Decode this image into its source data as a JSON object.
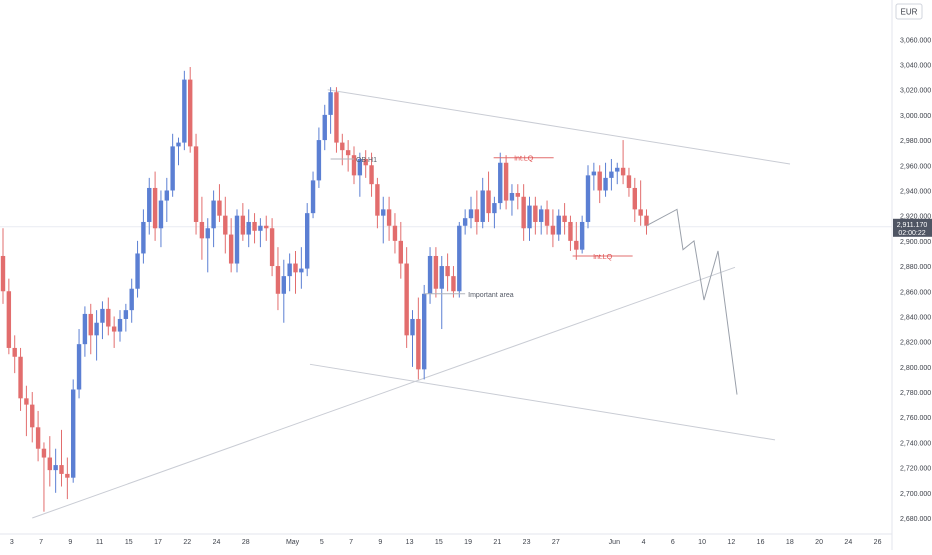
{
  "chart_data": {
    "type": "candlestick",
    "currency": "EUR",
    "y_ticks": [
      2680,
      2700,
      2720,
      2740,
      2760,
      2780,
      2800,
      2820,
      2840,
      2860,
      2880,
      2900,
      2920,
      2940,
      2960,
      2980,
      3000,
      3020,
      3040,
      3060
    ],
    "y_tick_labels": [
      "2,680.000",
      "2,700.000",
      "2,720.000",
      "2,740.000",
      "2,760.000",
      "2,780.000",
      "2,800.000",
      "2,820.000",
      "2,840.000",
      "2,860.000",
      "2,880.000",
      "2,900.000",
      "2,920.000",
      "2,940.000",
      "2,960.000",
      "2,980.000",
      "3,000.000",
      "3,020.000",
      "3,040.000",
      "3,060.000"
    ],
    "x_labels": [
      {
        "label": "3",
        "bar": 1.5
      },
      {
        "label": "7",
        "bar": 6.5
      },
      {
        "label": "9",
        "bar": 11.5
      },
      {
        "label": "11",
        "bar": 16.5
      },
      {
        "label": "15",
        "bar": 21.5
      },
      {
        "label": "17",
        "bar": 26.5
      },
      {
        "label": "22",
        "bar": 31.5
      },
      {
        "label": "24",
        "bar": 36.5
      },
      {
        "label": "28",
        "bar": 41.5
      },
      {
        "label": "May",
        "bar": 49.5
      },
      {
        "label": "5",
        "bar": 54.5
      },
      {
        "label": "7",
        "bar": 59.5
      },
      {
        "label": "9",
        "bar": 64.5
      },
      {
        "label": "13",
        "bar": 69.5
      },
      {
        "label": "15",
        "bar": 74.5
      },
      {
        "label": "19",
        "bar": 79.5
      },
      {
        "label": "21",
        "bar": 84.5
      },
      {
        "label": "23",
        "bar": 89.5
      },
      {
        "label": "27",
        "bar": 94.5
      },
      {
        "label": "Jun",
        "bar": 104.5
      },
      {
        "label": "4",
        "bar": 109.5
      },
      {
        "label": "6",
        "bar": 114.5
      },
      {
        "label": "10",
        "bar": 119.5
      },
      {
        "label": "12",
        "bar": 124.5
      },
      {
        "label": "16",
        "bar": 129.5
      },
      {
        "label": "18",
        "bar": 134.5
      },
      {
        "label": "20",
        "bar": 139.5
      },
      {
        "label": "24",
        "bar": 144.5
      },
      {
        "label": "26",
        "bar": 149.5
      }
    ],
    "current_price": {
      "value": 2911.17,
      "label": "2,911.170",
      "countdown": "02:00:22"
    },
    "candles": [
      [
        2888,
        2910,
        2850,
        2860
      ],
      [
        2860,
        2870,
        2810,
        2815
      ],
      [
        2815,
        2825,
        2795,
        2808
      ],
      [
        2808,
        2815,
        2765,
        2775
      ],
      [
        2775,
        2785,
        2745,
        2770
      ],
      [
        2770,
        2780,
        2740,
        2752
      ],
      [
        2752,
        2765,
        2725,
        2735
      ],
      [
        2735,
        2740,
        2685,
        2728
      ],
      [
        2728,
        2745,
        2705,
        2718
      ],
      [
        2718,
        2735,
        2700,
        2722
      ],
      [
        2722,
        2750,
        2705,
        2715
      ],
      [
        2715,
        2728,
        2695,
        2712
      ],
      [
        2712,
        2790,
        2708,
        2782
      ],
      [
        2782,
        2830,
        2775,
        2818
      ],
      [
        2818,
        2848,
        2808,
        2842
      ],
      [
        2842,
        2850,
        2810,
        2825
      ],
      [
        2825,
        2845,
        2805,
        2835
      ],
      [
        2835,
        2852,
        2822,
        2846
      ],
      [
        2846,
        2855,
        2825,
        2832
      ],
      [
        2832,
        2840,
        2815,
        2828
      ],
      [
        2828,
        2845,
        2820,
        2838
      ],
      [
        2838,
        2850,
        2828,
        2845
      ],
      [
        2845,
        2870,
        2835,
        2862
      ],
      [
        2862,
        2900,
        2855,
        2890
      ],
      [
        2890,
        2925,
        2882,
        2915
      ],
      [
        2915,
        2950,
        2905,
        2942
      ],
      [
        2942,
        2955,
        2900,
        2910
      ],
      [
        2910,
        2940,
        2895,
        2932
      ],
      [
        2932,
        2950,
        2915,
        2940
      ],
      [
        2940,
        2985,
        2935,
        2975
      ],
      [
        2975,
        2982,
        2960,
        2978
      ],
      [
        2978,
        3035,
        2972,
        3028
      ],
      [
        3028,
        3038,
        2970,
        2975
      ],
      [
        2975,
        2985,
        2905,
        2915
      ],
      [
        2915,
        2935,
        2885,
        2902
      ],
      [
        2902,
        2918,
        2875,
        2910
      ],
      [
        2910,
        2940,
        2895,
        2932
      ],
      [
        2932,
        2945,
        2915,
        2920
      ],
      [
        2920,
        2935,
        2890,
        2905
      ],
      [
        2905,
        2918,
        2875,
        2882
      ],
      [
        2882,
        2925,
        2875,
        2920
      ],
      [
        2920,
        2930,
        2900,
        2905
      ],
      [
        2905,
        2925,
        2895,
        2915
      ],
      [
        2915,
        2922,
        2898,
        2908
      ],
      [
        2908,
        2918,
        2895,
        2912
      ],
      [
        2912,
        2920,
        2900,
        2910
      ],
      [
        2910,
        2918,
        2872,
        2880
      ],
      [
        2880,
        2895,
        2845,
        2858
      ],
      [
        2858,
        2885,
        2835,
        2872
      ],
      [
        2872,
        2890,
        2860,
        2882
      ],
      [
        2882,
        2892,
        2858,
        2875
      ],
      [
        2875,
        2895,
        2862,
        2878
      ],
      [
        2878,
        2930,
        2872,
        2922
      ],
      [
        2922,
        2955,
        2918,
        2948
      ],
      [
        2948,
        2990,
        2942,
        2980
      ],
      [
        2980,
        3008,
        2972,
        3000
      ],
      [
        3000,
        3022,
        2985,
        3018
      ],
      [
        3018,
        3022,
        2970,
        2978
      ],
      [
        2978,
        2985,
        2960,
        2972
      ],
      [
        2972,
        2980,
        2955,
        2968
      ],
      [
        2968,
        2975,
        2945,
        2952
      ],
      [
        2952,
        2970,
        2935,
        2965
      ],
      [
        2965,
        2972,
        2950,
        2960
      ],
      [
        2960,
        2970,
        2935,
        2945
      ],
      [
        2945,
        2950,
        2910,
        2920
      ],
      [
        2920,
        2935,
        2898,
        2925
      ],
      [
        2925,
        2935,
        2900,
        2912
      ],
      [
        2912,
        2922,
        2890,
        2900
      ],
      [
        2900,
        2915,
        2870,
        2882
      ],
      [
        2882,
        2895,
        2815,
        2825
      ],
      [
        2825,
        2845,
        2800,
        2838
      ],
      [
        2838,
        2855,
        2790,
        2798
      ],
      [
        2798,
        2865,
        2790,
        2858
      ],
      [
        2858,
        2895,
        2850,
        2888
      ],
      [
        2888,
        2895,
        2855,
        2862
      ],
      [
        2862,
        2888,
        2830,
        2880
      ],
      [
        2880,
        2890,
        2860,
        2872
      ],
      [
        2872,
        2880,
        2855,
        2860
      ],
      [
        2860,
        2915,
        2855,
        2912
      ],
      [
        2912,
        2925,
        2905,
        2918
      ],
      [
        2918,
        2935,
        2910,
        2925
      ],
      [
        2925,
        2940,
        2905,
        2915
      ],
      [
        2915,
        2950,
        2910,
        2940
      ],
      [
        2940,
        2955,
        2915,
        2922
      ],
      [
        2922,
        2935,
        2910,
        2930
      ],
      [
        2930,
        2970,
        2925,
        2962
      ],
      [
        2962,
        2968,
        2925,
        2932
      ],
      [
        2932,
        2945,
        2920,
        2938
      ],
      [
        2938,
        2945,
        2925,
        2935
      ],
      [
        2935,
        2945,
        2900,
        2910
      ],
      [
        2910,
        2935,
        2900,
        2928
      ],
      [
        2928,
        2935,
        2905,
        2915
      ],
      [
        2915,
        2928,
        2905,
        2925
      ],
      [
        2925,
        2932,
        2905,
        2912
      ],
      [
        2912,
        2925,
        2895,
        2905
      ],
      [
        2905,
        2925,
        2900,
        2920
      ],
      [
        2920,
        2930,
        2905,
        2915
      ],
      [
        2915,
        2920,
        2892,
        2900
      ],
      [
        2900,
        2915,
        2885,
        2893
      ],
      [
        2893,
        2920,
        2890,
        2915
      ],
      [
        2915,
        2960,
        2910,
        2952
      ],
      [
        2952,
        2962,
        2940,
        2955
      ],
      [
        2955,
        2960,
        2930,
        2940
      ],
      [
        2940,
        2962,
        2935,
        2950
      ],
      [
        2950,
        2965,
        2940,
        2955
      ],
      [
        2955,
        2962,
        2945,
        2958
      ],
      [
        2958,
        2980,
        2945,
        2952
      ],
      [
        2952,
        2958,
        2935,
        2942
      ],
      [
        2942,
        2950,
        2915,
        2925
      ],
      [
        2925,
        2948,
        2912,
        2920
      ],
      [
        2920,
        2925,
        2905,
        2912
      ]
    ],
    "annotations": [
      {
        "text": "OB H1",
        "bar": 60,
        "price": 2965
      },
      {
        "text": "Int.LQ",
        "bar": 89,
        "price": 2966
      },
      {
        "text": "Int.LQ",
        "bar": 102.5,
        "price": 2888
      },
      {
        "text": "Important area",
        "bar": 79,
        "price": 2858
      }
    ]
  }
}
